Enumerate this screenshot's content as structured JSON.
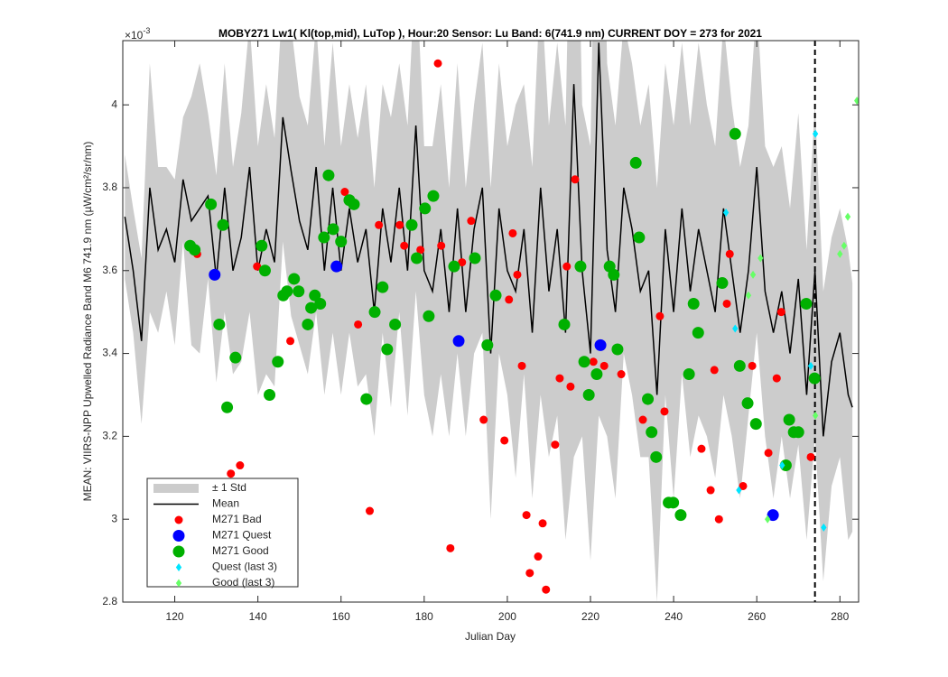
{
  "chart_data": {
    "type": "scatter",
    "title": "MOBY271   Lw1( Kl(top,mid), LuTop ),  Hour:20 Sensor: Lu Band: 6(741.9 nm)   CURRENT DOY = 273 for 2021",
    "x_label": "Julian Day",
    "y_label": "MEAN: VIIRS-NPP Upwelled Radiance Band M6 741.9 nm (µW/cm²/sr/nm)",
    "y_multiplier": {
      "base": "×10",
      "exponent": "-3"
    },
    "xlim": [
      107.5,
      284.5
    ],
    "ylim": [
      2.8,
      4.155
    ],
    "xticks": [
      120,
      140,
      160,
      180,
      200,
      220,
      240,
      260,
      280
    ],
    "yticks": [
      2.8,
      3,
      3.2,
      3.4,
      3.6,
      3.8,
      4
    ],
    "current_doy_line": 274,
    "legend": "lower left",
    "x": [
      108,
      110,
      112,
      114,
      116,
      118,
      120,
      122,
      124,
      126,
      128,
      130,
      132,
      134,
      136,
      138,
      140,
      142,
      144,
      146,
      148,
      150,
      152,
      154,
      156,
      158,
      160,
      162,
      164,
      166,
      168,
      170,
      172,
      174,
      176,
      178,
      180,
      182,
      184,
      186,
      188,
      190,
      192,
      194,
      196,
      198,
      200,
      202,
      204,
      206,
      208,
      210,
      212,
      214,
      216,
      218,
      220,
      222,
      224,
      226,
      228,
      230,
      232,
      234,
      236,
      238,
      240,
      242,
      244,
      246,
      248,
      250,
      252,
      254,
      256,
      258,
      260,
      262,
      264,
      266,
      268,
      270,
      272,
      274,
      276,
      278,
      280,
      282,
      283
    ],
    "band": {
      "name": "± 1 Std",
      "color": "#cccccc",
      "values": [
        0.15,
        0.15,
        0.2,
        0.3,
        0.2,
        0.15,
        0.2,
        0.15,
        0.3,
        0.35,
        0.2,
        0.25,
        0.3,
        0.25,
        0.3,
        0.35,
        0.3,
        0.35,
        0.3,
        0.3,
        0.35,
        0.3,
        0.3,
        0.35,
        0.3,
        0.35,
        0.3,
        0.3,
        0.3,
        0.35,
        0.3,
        0.3,
        0.35,
        0.3,
        0.35,
        0.4,
        0.3,
        0.35,
        0.35,
        0.3,
        0.35,
        0.3,
        0.3,
        0.35,
        0.4,
        0.35,
        0.3,
        0.45,
        0.35,
        0.4,
        0.5,
        0.4,
        0.45,
        0.5,
        0.9,
        0.4,
        0.5,
        0.9,
        0.45,
        0.45,
        0.4,
        0.4,
        0.4,
        0.45,
        0.5,
        0.4,
        0.45,
        0.4,
        0.4,
        0.45,
        0.4,
        0.4,
        0.45,
        0.4,
        0.4,
        0.35,
        0.4,
        0.35,
        0.4,
        0.35,
        0.35,
        0.4,
        0.35,
        0.4,
        0.35,
        0.3,
        0.3,
        0.35,
        0.3
      ]
    },
    "mean": {
      "name": "Mean",
      "color": "#000000",
      "values": [
        3.73,
        3.6,
        3.43,
        3.8,
        3.65,
        3.7,
        3.62,
        3.82,
        3.72,
        3.75,
        3.78,
        3.58,
        3.8,
        3.6,
        3.68,
        3.85,
        3.6,
        3.7,
        3.62,
        3.97,
        3.84,
        3.72,
        3.65,
        3.85,
        3.6,
        3.8,
        3.6,
        3.75,
        3.62,
        3.7,
        3.5,
        3.75,
        3.62,
        3.8,
        3.6,
        3.95,
        3.6,
        3.55,
        3.7,
        3.5,
        3.75,
        3.5,
        3.7,
        3.8,
        3.4,
        3.75,
        3.6,
        3.55,
        3.7,
        3.45,
        3.8,
        3.55,
        3.7,
        3.45,
        4.05,
        3.6,
        3.4,
        4.15,
        3.65,
        3.5,
        3.8,
        3.7,
        3.55,
        3.6,
        3.3,
        3.7,
        3.5,
        3.75,
        3.55,
        3.7,
        3.6,
        3.5,
        3.75,
        3.6,
        3.45,
        3.6,
        3.85,
        3.55,
        3.45,
        3.55,
        3.4,
        3.58,
        3.3,
        3.6,
        3.2,
        3.38,
        3.45,
        3.3,
        3.27
      ]
    },
    "series": [
      {
        "name": "M271 Bad",
        "color": "#ff0000",
        "marker": "circle",
        "x": [
          125.4,
          133.5,
          135.7,
          139.8,
          147.8,
          160.9,
          164.1,
          166.9,
          169.1,
          174.1,
          175.2,
          179.1,
          183.3,
          184.1,
          186.3,
          189.1,
          191.3,
          194.3,
          199.3,
          200.4,
          201.3,
          202.4,
          203.5,
          204.6,
          205.4,
          207.4,
          208.5,
          209.3,
          211.5,
          212.6,
          214.3,
          215.2,
          216.3,
          220.7,
          223.3,
          227.4,
          232.6,
          236.7,
          237.8,
          246.7,
          248.9,
          249.8,
          250.9,
          252.8,
          253.5,
          256.7,
          258.9,
          262.8,
          264.8,
          265.9,
          273.0
        ],
        "values": [
          3.64,
          3.11,
          3.13,
          3.61,
          3.43,
          3.79,
          3.47,
          3.02,
          3.71,
          3.71,
          3.66,
          3.65,
          4.1,
          3.66,
          2.93,
          3.62,
          3.72,
          3.24,
          3.19,
          3.53,
          3.69,
          3.59,
          3.37,
          3.01,
          2.87,
          2.91,
          2.99,
          2.83,
          3.18,
          3.34,
          3.61,
          3.32,
          3.82,
          3.38,
          3.37,
          3.35,
          3.24,
          3.49,
          3.26,
          3.17,
          3.07,
          3.36,
          3.0,
          3.52,
          3.64,
          3.08,
          3.37,
          3.16,
          3.34,
          3.5,
          3.15
        ]
      },
      {
        "name": "M271 Quest",
        "color": "#0000ff",
        "marker": "circle",
        "x": [
          129.6,
          158.9,
          188.3,
          222.4,
          263.9
        ],
        "values": [
          3.59,
          3.61,
          3.43,
          3.42,
          3.01
        ]
      },
      {
        "name": "M271 Good",
        "color": "#00b000",
        "marker": "circle",
        "x": [
          123.7,
          124.8,
          128.7,
          130.7,
          131.6,
          132.6,
          134.6,
          140.9,
          141.7,
          142.8,
          144.8,
          146.1,
          147,
          148.7,
          149.8,
          152,
          152.8,
          153.7,
          155,
          155.9,
          157,
          158.1,
          160,
          162,
          163.1,
          166.1,
          168.1,
          170,
          171.1,
          173,
          177,
          178.2,
          180.2,
          181.1,
          182.2,
          187.2,
          192.2,
          195.2,
          197.2,
          213.7,
          217.6,
          218.5,
          219.6,
          221.5,
          224.6,
          225.6,
          226.5,
          230.9,
          231.7,
          233.8,
          234.7,
          235.8,
          238.8,
          239.9,
          241.7,
          243.7,
          244.8,
          245.9,
          251.7,
          254.8,
          255.9,
          257.8,
          259.8,
          267,
          267.8,
          268.9,
          270,
          271.9,
          273.9
        ],
        "values": [
          3.66,
          3.65,
          3.76,
          3.47,
          3.71,
          3.27,
          3.39,
          3.66,
          3.6,
          3.3,
          3.38,
          3.54,
          3.55,
          3.58,
          3.55,
          3.47,
          3.51,
          3.54,
          3.52,
          3.68,
          3.83,
          3.7,
          3.67,
          3.77,
          3.76,
          3.29,
          3.5,
          3.56,
          3.41,
          3.47,
          3.71,
          3.63,
          3.75,
          3.49,
          3.78,
          3.61,
          3.63,
          3.42,
          3.54,
          3.47,
          3.61,
          3.38,
          3.3,
          3.35,
          3.61,
          3.59,
          3.41,
          3.86,
          3.68,
          3.29,
          3.21,
          3.15,
          3.04,
          3.04,
          3.01,
          3.35,
          3.52,
          3.45,
          3.57,
          3.93,
          3.37,
          3.28,
          3.23,
          3.13,
          3.24,
          3.21,
          3.21,
          3.52,
          3.34
        ]
      },
      {
        "name": "Quest (last 3)",
        "color": "#00e5ff",
        "marker": "diamond",
        "x": [
          252.6,
          254.8,
          255.7,
          266.1,
          273,
          274.1,
          276.1
        ],
        "values": [
          3.74,
          3.46,
          3.07,
          3.13,
          3.37,
          3.93,
          2.98
        ]
      },
      {
        "name": "Good (last 3)",
        "color": "#66ff66",
        "marker": "diamond",
        "x": [
          258,
          259.1,
          260.9,
          262.6,
          274.1,
          280,
          281,
          281.9,
          284.1
        ],
        "values": [
          3.54,
          3.59,
          3.63,
          3.0,
          3.25,
          3.64,
          3.66,
          3.73,
          4.01
        ]
      }
    ]
  }
}
